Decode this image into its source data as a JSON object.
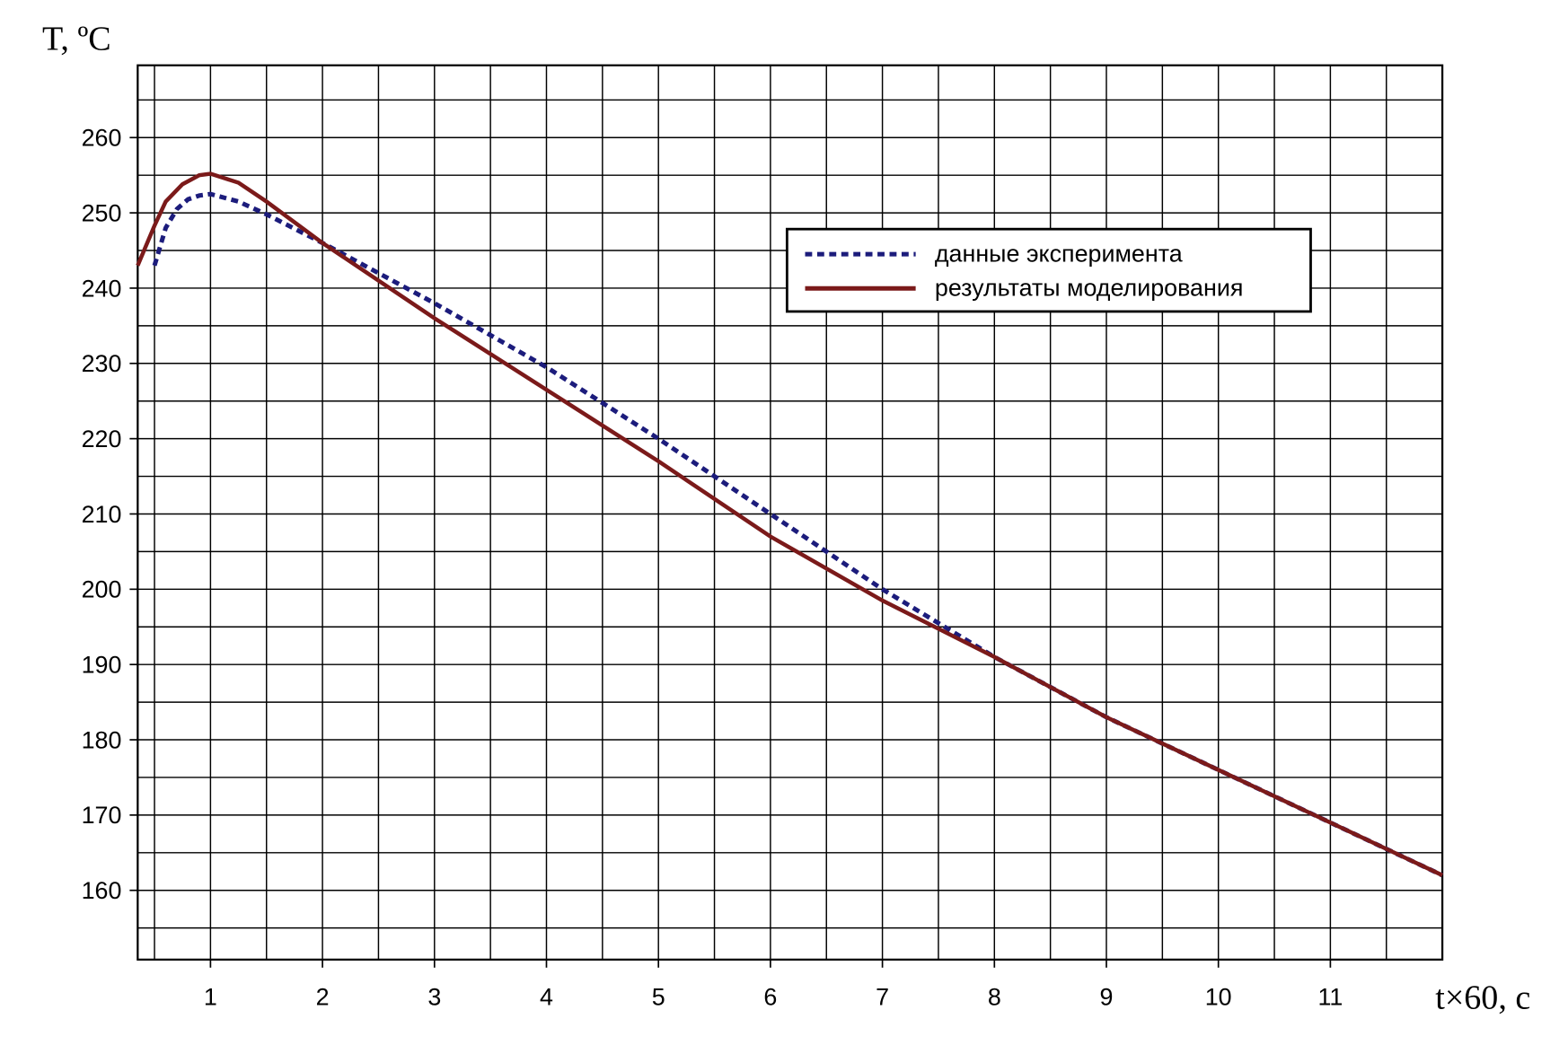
{
  "chart_data": {
    "type": "line",
    "y_label": "T, ºC",
    "x_label": "t×60, c",
    "xlim": [
      0.35,
      12
    ],
    "ylim": [
      150.8,
      269.6
    ],
    "xticks": [
      1,
      2,
      3,
      4,
      5,
      6,
      7,
      8,
      9,
      10,
      11
    ],
    "yticks": [
      160,
      170,
      180,
      190,
      200,
      210,
      220,
      230,
      240,
      250,
      260
    ],
    "minor_grid": {
      "x": 0.5,
      "y": 5
    },
    "grid": true,
    "legend": "upper right",
    "series": [
      {
        "name": "данные эксперимента",
        "color": "#1c1c7c",
        "linestyle": "dotted",
        "x": [
          0.5,
          0.6,
          0.7,
          0.8,
          0.9,
          1,
          1.25,
          1.5,
          2,
          3,
          4,
          5,
          6,
          7,
          8,
          9,
          10,
          11,
          12
        ],
        "values": [
          243,
          248,
          250.5,
          251.8,
          252.3,
          252.5,
          251.5,
          249.8,
          246,
          238,
          229.5,
          220,
          210,
          200,
          191,
          183,
          176,
          169,
          162
        ]
      },
      {
        "name": "результаты моделирования",
        "color": "#7b1a1a",
        "linestyle": "solid",
        "x": [
          0.35,
          0.5,
          0.6,
          0.75,
          0.9,
          1,
          1.25,
          1.5,
          2,
          3,
          4,
          5,
          6,
          7,
          8,
          9,
          10,
          11,
          12
        ],
        "values": [
          243,
          248.3,
          251.5,
          253.8,
          255,
          255.2,
          254,
          251.5,
          246,
          236,
          226.5,
          217,
          207,
          198.5,
          191,
          183,
          176,
          169,
          162
        ]
      }
    ]
  }
}
